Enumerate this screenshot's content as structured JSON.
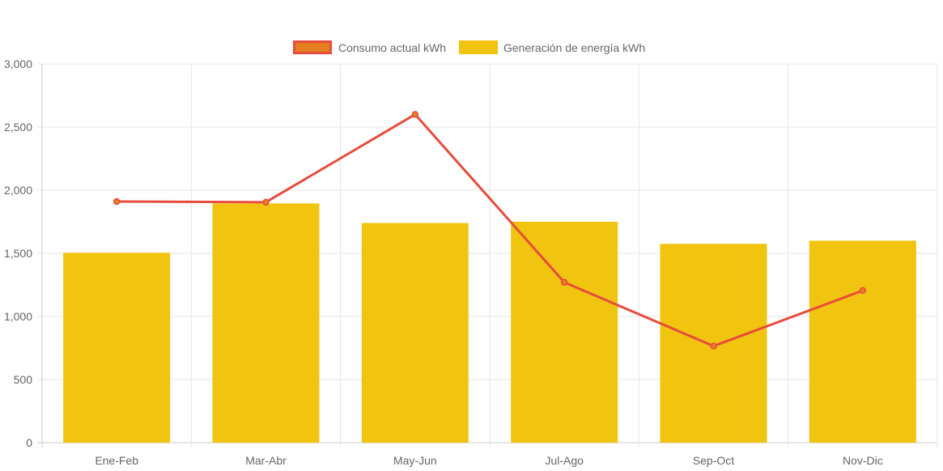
{
  "chart_data": {
    "type": "bar",
    "categories": [
      "Ene-Feb",
      "Mar-Abr",
      "May-Jun",
      "Jul-Ago",
      "Sep-Oct",
      "Nov-Dic"
    ],
    "series": [
      {
        "name": "Consumo actual kWh",
        "kind": "line",
        "color": "#e74c3c",
        "point_fill": "#e67e22",
        "values": [
          1910,
          1905,
          2600,
          1270,
          765,
          1205
        ]
      },
      {
        "name": "Generación de energía kWh",
        "kind": "bar",
        "color": "#f1c40f",
        "values": [
          1505,
          1895,
          1740,
          1750,
          1575,
          1600
        ]
      }
    ],
    "ylim": [
      0,
      3000
    ],
    "yticks": [
      0,
      500,
      1000,
      1500,
      2000,
      2500,
      3000
    ],
    "ytick_labels": [
      "0",
      "500",
      "1,000",
      "1,500",
      "2,000",
      "2,500",
      "3,000"
    ],
    "grid": true,
    "legend_position": "top-center",
    "title": "",
    "xlabel": "",
    "ylabel": ""
  }
}
